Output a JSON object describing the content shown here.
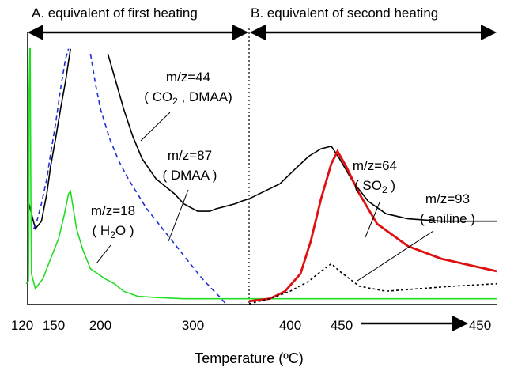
{
  "chart_data": {
    "type": "line",
    "xlabel": "Temperature (ºC)",
    "segments": [
      {
        "name": "A",
        "label": "A. equivalent of first heating",
        "ticks": [
          120,
          150,
          200,
          300
        ],
        "xlim": [
          120,
          360
        ]
      },
      {
        "name": "B",
        "label": "B. equivalent of second heating",
        "ticks": [
          400,
          450
        ],
        "xlim": [
          360,
          450
        ],
        "extra_tick": 450
      }
    ],
    "series": [
      {
        "name_line1": "m/z=44",
        "name_line2_prefix": "( CO",
        "name_line2_sub": "2",
        "name_line2_suffix": " , DMAA)",
        "color": "#000000",
        "dash": "none",
        "segA": [
          [
            120,
            0.42
          ],
          [
            125,
            0.36
          ],
          [
            130,
            0.3
          ],
          [
            138,
            0.33
          ],
          [
            145,
            0.44
          ],
          [
            150,
            0.55
          ],
          [
            155,
            0.66
          ],
          [
            160,
            0.78
          ],
          [
            165,
            0.89
          ],
          [
            168,
            0.97
          ],
          [
            170,
            1.02
          ]
        ],
        "segA2": [
          [
            208,
            1.0
          ],
          [
            215,
            0.91
          ],
          [
            225,
            0.78
          ],
          [
            235,
            0.67
          ],
          [
            245,
            0.58
          ],
          [
            260,
            0.5
          ],
          [
            270,
            0.47
          ],
          [
            280,
            0.44
          ],
          [
            290,
            0.4
          ],
          [
            300,
            0.38
          ],
          [
            305,
            0.37
          ],
          [
            310,
            0.37
          ],
          [
            318,
            0.37
          ],
          [
            325,
            0.38
          ],
          [
            335,
            0.39
          ],
          [
            345,
            0.4
          ],
          [
            352,
            0.41
          ],
          [
            360,
            0.42
          ]
        ],
        "segB": [
          [
            360,
            0.42
          ],
          [
            375,
            0.45
          ],
          [
            390,
            0.48
          ],
          [
            405,
            0.54
          ],
          [
            418,
            0.59
          ],
          [
            430,
            0.62
          ],
          [
            440,
            0.63
          ],
          [
            448,
            0.58
          ],
          [
            455,
            0.49
          ],
          [
            462,
            0.41
          ],
          [
            470,
            0.36
          ],
          [
            480,
            0.34
          ],
          [
            495,
            0.33
          ],
          [
            510,
            0.33
          ],
          [
            520,
            0.33
          ]
        ],
        "b_unit": "B"
      },
      {
        "name_line1": "m/z=87",
        "name_line2": "( DMAA )",
        "color": "#1f2fd0",
        "dash": "6,4",
        "segA": [
          [
            128,
            0.3
          ],
          [
            132,
            0.33
          ],
          [
            138,
            0.4
          ],
          [
            145,
            0.5
          ],
          [
            150,
            0.6
          ],
          [
            155,
            0.72
          ],
          [
            160,
            0.86
          ],
          [
            165,
            0.98
          ],
          [
            168,
            1.02
          ]
        ],
        "segA2": [
          [
            190,
            1.0
          ],
          [
            195,
            0.88
          ],
          [
            200,
            0.78
          ],
          [
            210,
            0.66
          ],
          [
            220,
            0.57
          ],
          [
            230,
            0.5
          ],
          [
            240,
            0.44
          ],
          [
            250,
            0.38
          ],
          [
            265,
            0.31
          ],
          [
            280,
            0.24
          ],
          [
            295,
            0.17
          ],
          [
            310,
            0.1
          ],
          [
            320,
            0.06
          ],
          [
            328,
            0.03
          ],
          [
            335,
            0.0
          ]
        ]
      },
      {
        "name_line1": "m/z=18",
        "name_line2_prefix": "( H",
        "name_line2_sub": "2",
        "name_line2_suffix": "O )",
        "color": "#22dd22",
        "dash": "none",
        "segA": [
          [
            118,
            0.08
          ],
          [
            121,
            0.09
          ],
          [
            121.5,
            0.3
          ],
          [
            122,
            0.85
          ],
          [
            122.8,
            1.02
          ],
          [
            123.3,
            1.02
          ],
          [
            124,
            0.5
          ],
          [
            125,
            0.12
          ],
          [
            130,
            0.06
          ],
          [
            140,
            0.1
          ],
          [
            150,
            0.18
          ],
          [
            158,
            0.26
          ],
          [
            164,
            0.36
          ],
          [
            168,
            0.44
          ],
          [
            170,
            0.45
          ],
          [
            172,
            0.4
          ],
          [
            176,
            0.3
          ],
          [
            182,
            0.22
          ],
          [
            190,
            0.14
          ],
          [
            205,
            0.1
          ],
          [
            215,
            0.08
          ],
          [
            225,
            0.05
          ],
          [
            240,
            0.03
          ],
          [
            260,
            0.025
          ],
          [
            290,
            0.02
          ],
          [
            330,
            0.02
          ],
          [
            360,
            0.02
          ]
        ],
        "segB": [
          [
            360,
            0.02
          ],
          [
            400,
            0.02
          ],
          [
            450,
            0.02
          ],
          [
            500,
            0.02
          ],
          [
            520,
            0.02
          ]
        ]
      },
      {
        "name_line1": "m/z=64",
        "name_line2_prefix": "( SO",
        "name_line2_sub": "2",
        "name_line2_suffix": " )",
        "color": "#e01010",
        "dash": "none",
        "segB": [
          [
            360,
            0.01
          ],
          [
            380,
            0.02
          ],
          [
            395,
            0.05
          ],
          [
            410,
            0.12
          ],
          [
            420,
            0.25
          ],
          [
            430,
            0.42
          ],
          [
            440,
            0.56
          ],
          [
            446,
            0.61
          ],
          [
            452,
            0.55
          ],
          [
            458,
            0.44
          ],
          [
            466,
            0.32
          ],
          [
            480,
            0.23
          ],
          [
            495,
            0.18
          ],
          [
            510,
            0.15
          ],
          [
            520,
            0.13
          ]
        ]
      },
      {
        "name_line1": "m/z=93",
        "name_line2": "( aniline )",
        "color": "#000000",
        "dash": "3,3",
        "segB": [
          [
            360,
            0.0
          ],
          [
            380,
            0.02
          ],
          [
            400,
            0.05
          ],
          [
            418,
            0.09
          ],
          [
            430,
            0.13
          ],
          [
            440,
            0.16
          ],
          [
            448,
            0.13
          ],
          [
            458,
            0.07
          ],
          [
            470,
            0.05
          ],
          [
            485,
            0.06
          ],
          [
            500,
            0.07
          ],
          [
            520,
            0.08
          ]
        ]
      }
    ]
  }
}
